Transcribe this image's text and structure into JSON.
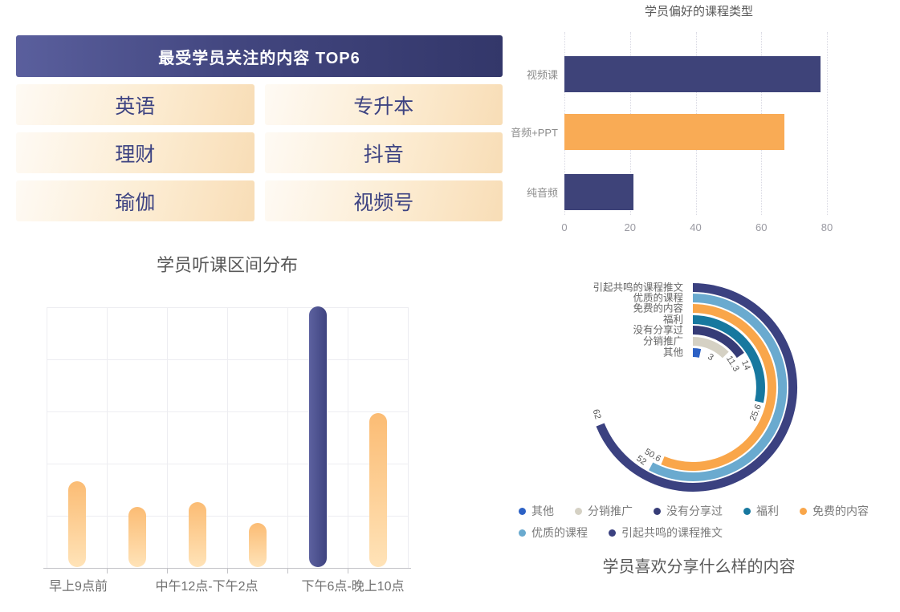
{
  "chart_data": [
    {
      "id": "top6-table",
      "type": "table",
      "title": "最受学员关注的内容 TOP6",
      "items": [
        "英语",
        "专升本",
        "理财",
        "抖音",
        "瑜伽",
        "视频号"
      ],
      "columns": 2,
      "header_gradient": [
        "#5a5f9d",
        "#33376a"
      ],
      "cell_gradient": [
        "#fefaf4",
        "#f8ddb6"
      ],
      "text_color": "#3d4382"
    },
    {
      "id": "course-type",
      "type": "bar",
      "orientation": "horizontal",
      "title": "学员偏好的课程类型",
      "categories": [
        "视频课",
        "音频+PPT",
        "纯音频"
      ],
      "values": [
        78,
        67,
        21
      ],
      "bar_colors": [
        "#3e4379",
        "#f9ab55",
        "#3e4379"
      ],
      "xlabel": "",
      "ylabel": "",
      "xlim": [
        0,
        80
      ],
      "xticks": [
        0,
        20,
        40,
        60,
        80
      ],
      "grid": "vertical-dotted",
      "legend_position": "none"
    },
    {
      "id": "listen-time",
      "type": "bar",
      "orientation": "vertical",
      "title": "学员听课区间分布",
      "values": [
        33,
        23,
        25,
        17,
        100,
        59
      ],
      "value_note": "y-axis has no tick labels; values are % of tallest bar",
      "highlight_index": 4,
      "x_axis_labels": [
        {
          "text": "早上9点前",
          "under_bar": 0
        },
        {
          "text": "中午12点-下午2点",
          "under_bar": 2
        },
        {
          "text": "下午6点-晚上10点",
          "under_bar": 4
        }
      ],
      "bar_gradient_normal": [
        "#fbbc74",
        "#ffe3b8"
      ],
      "bar_gradient_highlight": [
        "#5c619f",
        "#3f4480"
      ],
      "ylim": [
        0,
        100
      ],
      "grid": "full",
      "legend_position": "none"
    },
    {
      "id": "share-content",
      "type": "radial-bar",
      "title": "学员喜欢分享什么样的内容",
      "categories": [
        "其他",
        "分销推广",
        "没有分享过",
        "福利",
        "免费的内容",
        "优质的课程",
        "引起共鸣的课程推文"
      ],
      "values": [
        3,
        11.3,
        14,
        25.6,
        50.6,
        52,
        62
      ],
      "colors": [
        "#2c61c5",
        "#d5d1c4",
        "#363c77",
        "#17789f",
        "#f9a64a",
        "#6aaacf",
        "#3b4180"
      ],
      "scale_max": 90,
      "start_angle_deg": 0,
      "direction": "clockwise",
      "legend": [
        "其他",
        "分销推广",
        "没有分享过",
        "福利",
        "免费的内容",
        "优质的课程",
        "引起共鸣的课程推文"
      ],
      "legend_position": "bottom"
    }
  ]
}
